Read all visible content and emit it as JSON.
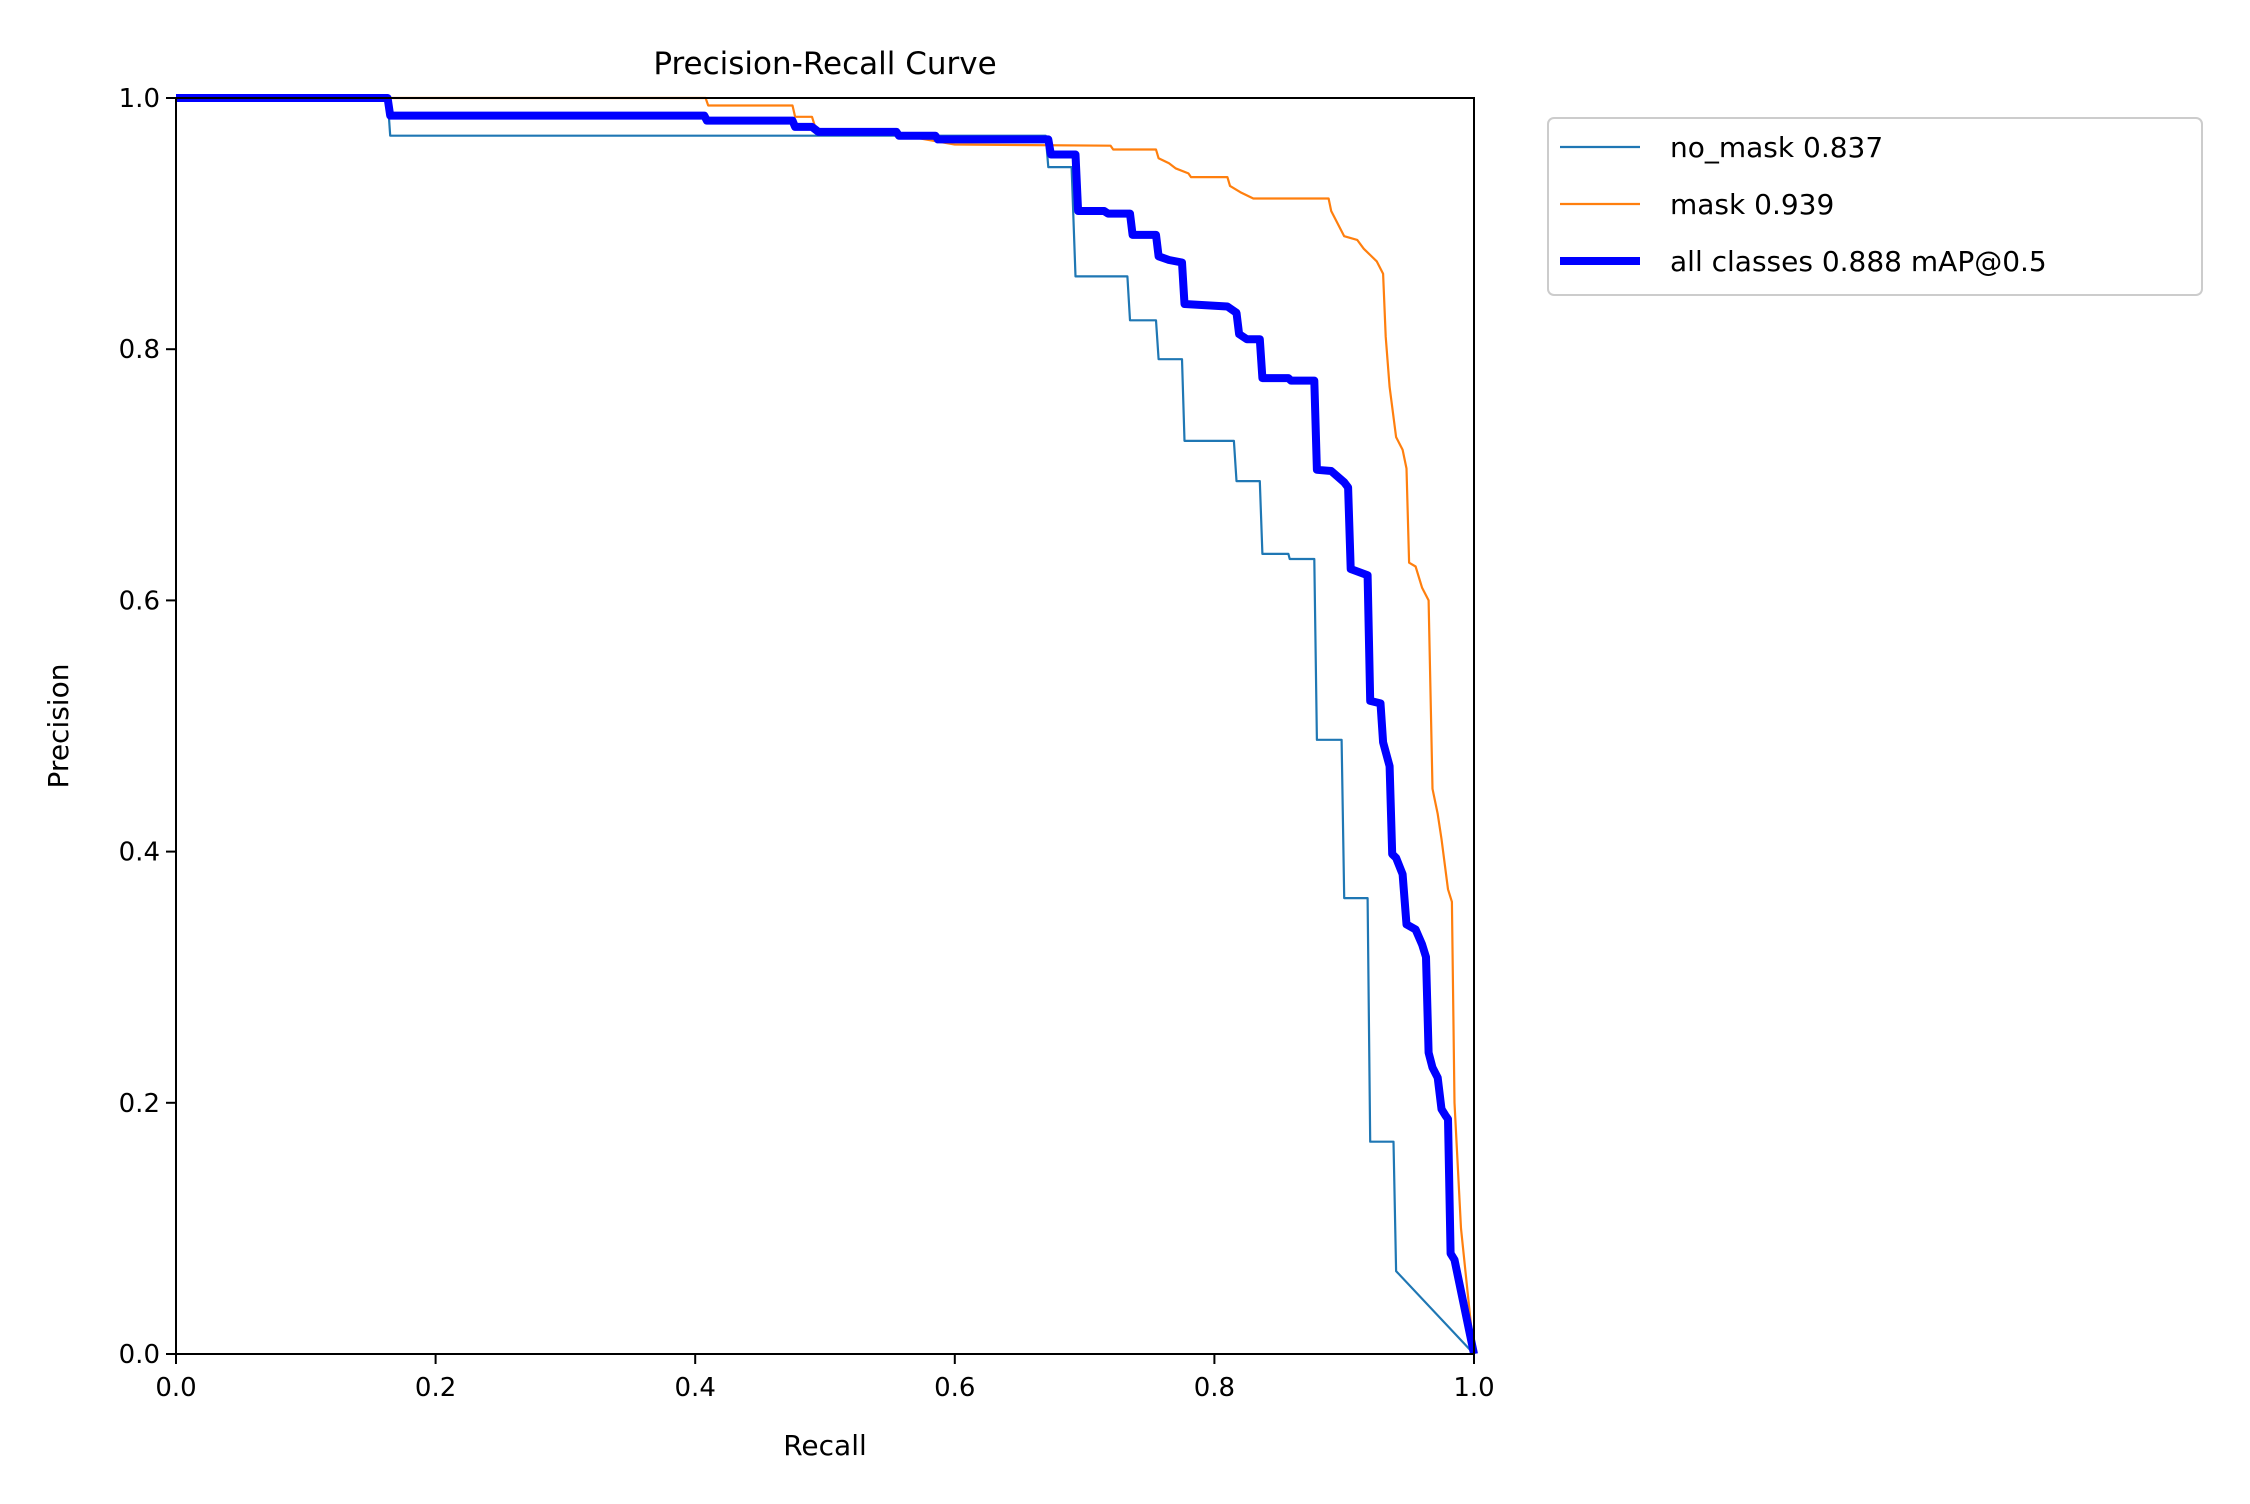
{
  "chart_data": {
    "type": "line",
    "title": "Precision-Recall Curve",
    "xlabel": "Recall",
    "ylabel": "Precision",
    "xlim": [
      0,
      1
    ],
    "ylim": [
      0,
      1
    ],
    "xticks": [
      "0.0",
      "0.2",
      "0.4",
      "0.6",
      "0.8",
      "1.0"
    ],
    "yticks": [
      "0.0",
      "0.2",
      "0.4",
      "0.6",
      "0.8",
      "1.0"
    ],
    "grid": false,
    "legend_position": "outside-top-right",
    "series": [
      {
        "name": "no_mask 0.837",
        "color": "#1f77b4",
        "line_style": "thin",
        "points": [
          [
            0,
            1
          ],
          [
            0.163,
            1
          ],
          [
            0.165,
            0.97
          ],
          [
            0.67,
            0.97
          ],
          [
            0.672,
            0.945
          ],
          [
            0.69,
            0.945
          ],
          [
            0.693,
            0.858
          ],
          [
            0.733,
            0.858
          ],
          [
            0.735,
            0.823
          ],
          [
            0.755,
            0.823
          ],
          [
            0.757,
            0.792
          ],
          [
            0.775,
            0.792
          ],
          [
            0.777,
            0.727
          ],
          [
            0.815,
            0.727
          ],
          [
            0.817,
            0.695
          ],
          [
            0.835,
            0.695
          ],
          [
            0.837,
            0.637
          ],
          [
            0.857,
            0.637
          ],
          [
            0.858,
            0.633
          ],
          [
            0.877,
            0.633
          ],
          [
            0.879,
            0.489
          ],
          [
            0.898,
            0.489
          ],
          [
            0.9,
            0.363
          ],
          [
            0.918,
            0.363
          ],
          [
            0.92,
            0.169
          ],
          [
            0.938,
            0.169
          ],
          [
            0.94,
            0.066
          ],
          [
            1.0,
            0.0
          ]
        ]
      },
      {
        "name": "mask 0.939",
        "color": "#ff7f0e",
        "line_style": "thin",
        "points": [
          [
            0,
            1
          ],
          [
            0.408,
            1
          ],
          [
            0.41,
            0.994
          ],
          [
            0.475,
            0.994
          ],
          [
            0.477,
            0.985
          ],
          [
            0.49,
            0.985
          ],
          [
            0.493,
            0.975
          ],
          [
            0.55,
            0.972
          ],
          [
            0.6,
            0.963
          ],
          [
            0.72,
            0.962
          ],
          [
            0.722,
            0.959
          ],
          [
            0.755,
            0.959
          ],
          [
            0.757,
            0.952
          ],
          [
            0.765,
            0.948
          ],
          [
            0.77,
            0.944
          ],
          [
            0.78,
            0.94
          ],
          [
            0.782,
            0.937
          ],
          [
            0.81,
            0.937
          ],
          [
            0.812,
            0.93
          ],
          [
            0.82,
            0.925
          ],
          [
            0.83,
            0.92
          ],
          [
            0.888,
            0.92
          ],
          [
            0.89,
            0.91
          ],
          [
            0.895,
            0.9
          ],
          [
            0.9,
            0.89
          ],
          [
            0.91,
            0.887
          ],
          [
            0.915,
            0.88
          ],
          [
            0.92,
            0.875
          ],
          [
            0.925,
            0.87
          ],
          [
            0.93,
            0.86
          ],
          [
            0.932,
            0.81
          ],
          [
            0.935,
            0.77
          ],
          [
            0.94,
            0.73
          ],
          [
            0.945,
            0.72
          ],
          [
            0.948,
            0.705
          ],
          [
            0.95,
            0.63
          ],
          [
            0.955,
            0.627
          ],
          [
            0.96,
            0.61
          ],
          [
            0.965,
            0.6
          ],
          [
            0.968,
            0.45
          ],
          [
            0.972,
            0.43
          ],
          [
            0.975,
            0.41
          ],
          [
            0.98,
            0.37
          ],
          [
            0.983,
            0.36
          ],
          [
            0.985,
            0.2
          ],
          [
            0.99,
            0.1
          ],
          [
            1.0,
            0.0
          ]
        ]
      },
      {
        "name": "all classes 0.888 mAP@0.5",
        "color": "#0000ff",
        "line_style": "thick",
        "points": [
          [
            0,
            1
          ],
          [
            0.163,
            1
          ],
          [
            0.165,
            0.986
          ],
          [
            0.407,
            0.986
          ],
          [
            0.409,
            0.982
          ],
          [
            0.475,
            0.982
          ],
          [
            0.477,
            0.977
          ],
          [
            0.49,
            0.977
          ],
          [
            0.495,
            0.973
          ],
          [
            0.555,
            0.973
          ],
          [
            0.557,
            0.97
          ],
          [
            0.585,
            0.97
          ],
          [
            0.587,
            0.967
          ],
          [
            0.672,
            0.967
          ],
          [
            0.674,
            0.955
          ],
          [
            0.693,
            0.955
          ],
          [
            0.695,
            0.91
          ],
          [
            0.715,
            0.91
          ],
          [
            0.718,
            0.908
          ],
          [
            0.735,
            0.908
          ],
          [
            0.737,
            0.891
          ],
          [
            0.755,
            0.891
          ],
          [
            0.757,
            0.874
          ],
          [
            0.765,
            0.871
          ],
          [
            0.775,
            0.869
          ],
          [
            0.777,
            0.836
          ],
          [
            0.81,
            0.834
          ],
          [
            0.817,
            0.829
          ],
          [
            0.819,
            0.812
          ],
          [
            0.825,
            0.808
          ],
          [
            0.835,
            0.808
          ],
          [
            0.837,
            0.777
          ],
          [
            0.857,
            0.777
          ],
          [
            0.859,
            0.775
          ],
          [
            0.877,
            0.775
          ],
          [
            0.879,
            0.704
          ],
          [
            0.89,
            0.703
          ],
          [
            0.9,
            0.694
          ],
          [
            0.903,
            0.69
          ],
          [
            0.905,
            0.625
          ],
          [
            0.918,
            0.62
          ],
          [
            0.92,
            0.52
          ],
          [
            0.928,
            0.518
          ],
          [
            0.93,
            0.487
          ],
          [
            0.935,
            0.468
          ],
          [
            0.937,
            0.398
          ],
          [
            0.94,
            0.395
          ],
          [
            0.945,
            0.382
          ],
          [
            0.948,
            0.342
          ],
          [
            0.955,
            0.338
          ],
          [
            0.96,
            0.326
          ],
          [
            0.963,
            0.316
          ],
          [
            0.965,
            0.24
          ],
          [
            0.968,
            0.228
          ],
          [
            0.972,
            0.22
          ],
          [
            0.975,
            0.195
          ],
          [
            0.978,
            0.19
          ],
          [
            0.98,
            0.187
          ],
          [
            0.982,
            0.08
          ],
          [
            0.985,
            0.075
          ],
          [
            1.0,
            0.0
          ]
        ]
      }
    ]
  }
}
